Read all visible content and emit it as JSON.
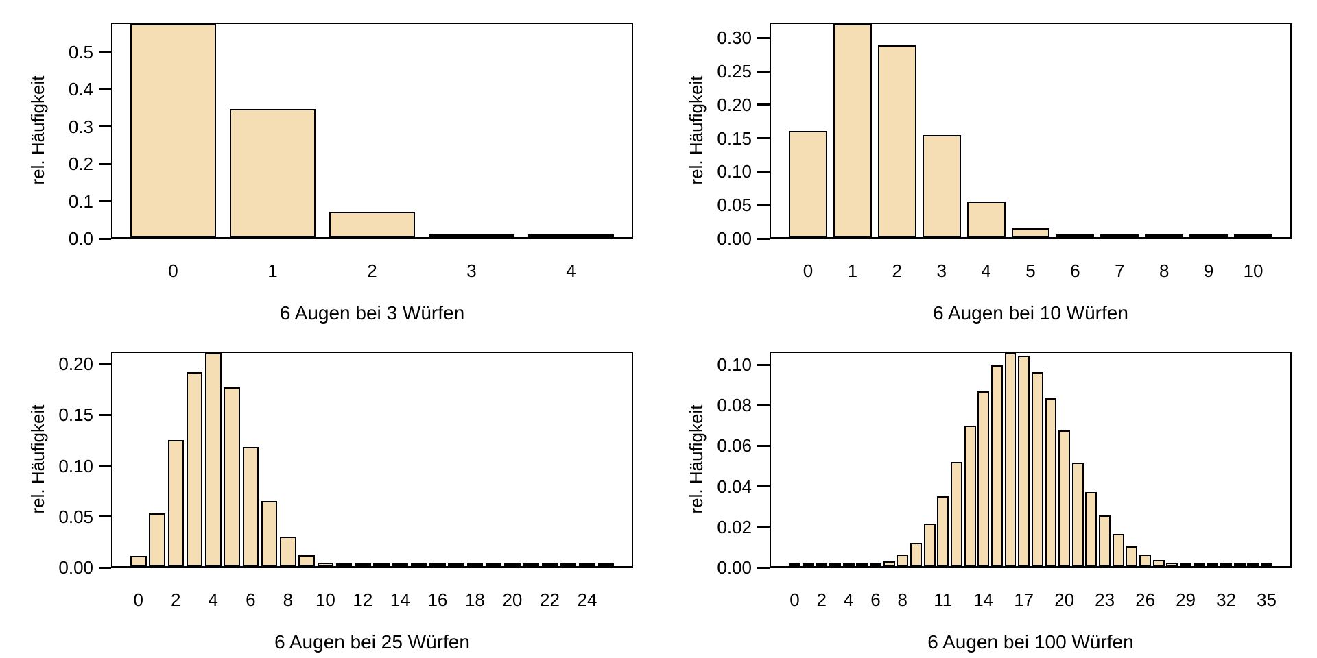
{
  "figure": {
    "background": "#ffffff",
    "text_color": "#000000",
    "bar_fill": "#F5DEB3",
    "bar_border": "#000000",
    "axis_color": "#000000"
  },
  "chart_data": [
    {
      "type": "bar",
      "title": "6 Augen bei 3 Würfen",
      "xlabel": "6 Augen bei 3 Würfen",
      "ylabel": "rel. Häufigkeit",
      "grid": false,
      "legend": null,
      "categories": [
        0,
        1,
        2,
        3,
        4
      ],
      "values": [
        0.578704,
        0.347222,
        0.069444,
        0.00463,
        0
      ],
      "ylim": [
        0,
        0.578704
      ],
      "ytick_values": [
        0.0,
        0.1,
        0.2,
        0.3,
        0.4,
        0.5
      ],
      "ytick_labels": [
        "0.0",
        "0.1",
        "0.2",
        "0.3",
        "0.4",
        "0.5"
      ],
      "xtick_indices": [
        0,
        1,
        2,
        3,
        4
      ],
      "xtick_labels": [
        "0",
        "1",
        "2",
        "3",
        "4"
      ]
    },
    {
      "type": "bar",
      "title": "6 Augen bei 10 Würfen",
      "xlabel": "6 Augen bei 10 Würfen",
      "ylabel": "rel. Häufigkeit",
      "grid": false,
      "legend": null,
      "categories": [
        0,
        1,
        2,
        3,
        4,
        5,
        6,
        7,
        8,
        9,
        10
      ],
      "values": [
        0.161506,
        0.323011,
        0.29071,
        0.155045,
        0.054266,
        0.013024,
        0.002171,
        0.000248,
        1.9e-05,
        1e-06,
        0
      ],
      "ylim": [
        0,
        0.323011
      ],
      "ytick_values": [
        0.0,
        0.05,
        0.1,
        0.15,
        0.2,
        0.25,
        0.3
      ],
      "ytick_labels": [
        "0.00",
        "0.05",
        "0.10",
        "0.15",
        "0.20",
        "0.25",
        "0.30"
      ],
      "xtick_indices": [
        0,
        1,
        2,
        3,
        4,
        5,
        6,
        7,
        8,
        9,
        10
      ],
      "xtick_labels": [
        "0",
        "1",
        "2",
        "3",
        "4",
        "5",
        "6",
        "7",
        "8",
        "9",
        "10"
      ]
    },
    {
      "type": "bar",
      "title": "6 Augen bei 25 Würfen",
      "xlabel": "6 Augen bei 25 Würfen",
      "ylabel": "rel. Häufigkeit",
      "grid": false,
      "legend": null,
      "categories": [
        0,
        1,
        2,
        3,
        4,
        5,
        6,
        7,
        8,
        9,
        10,
        11,
        12,
        13,
        14,
        15,
        16,
        17,
        18,
        19,
        20,
        21,
        22,
        23,
        24,
        25
      ],
      "values": [
        0.010483,
        0.052413,
        0.125791,
        0.19288,
        0.212168,
        0.178221,
        0.118814,
        0.064499,
        0.029025,
        0.010965,
        0.003509,
        0.000957,
        0.000223,
        4.5e-05,
        8e-06,
        1e-06,
        0,
        0,
        0,
        0,
        0,
        0,
        0,
        0,
        0,
        0
      ],
      "ylim": [
        0,
        0.212168
      ],
      "ytick_values": [
        0.0,
        0.05,
        0.1,
        0.15,
        0.2
      ],
      "ytick_labels": [
        "0.00",
        "0.05",
        "0.10",
        "0.15",
        "0.20"
      ],
      "xtick_indices": [
        0,
        2,
        4,
        6,
        8,
        10,
        12,
        14,
        16,
        18,
        20,
        22,
        24
      ],
      "xtick_labels": [
        "0",
        "2",
        "4",
        "6",
        "8",
        "10",
        "12",
        "14",
        "16",
        "18",
        "20",
        "22",
        "24"
      ]
    },
    {
      "type": "bar",
      "title": "6 Augen bei 100 Würfen",
      "xlabel": "6 Augen bei 100 Würfen",
      "ylabel": "rel. Häufigkeit",
      "grid": false,
      "legend": null,
      "categories": [
        0,
        1,
        2,
        3,
        4,
        5,
        6,
        7,
        8,
        9,
        10,
        11,
        12,
        13,
        14,
        15,
        16,
        17,
        18,
        19,
        20,
        21,
        22,
        23,
        24,
        25,
        26,
        27,
        28,
        29,
        30,
        31,
        32,
        33,
        34,
        35
      ],
      "values": [
        0,
        0,
        2e-06,
        1.6e-05,
        7.6e-05,
        0.000291,
        0.000921,
        0.002473,
        0.00575,
        0.011756,
        0.021395,
        0.03501,
        0.051931,
        0.070307,
        0.087382,
        0.100198,
        0.10646,
        0.105208,
        0.097025,
        0.083748,
        0.067836,
        0.051685,
        0.037119,
        0.025176,
        0.016155,
        0.009822,
        0.005667,
        0.003106,
        0.00162,
        0.000804,
        0.000381,
        0.000172,
        7.4e-05,
        3.1e-05,
        1.2e-05,
        5e-06
      ],
      "ylim": [
        0,
        0.10646
      ],
      "ytick_values": [
        0.0,
        0.02,
        0.04,
        0.06,
        0.08,
        0.1
      ],
      "ytick_labels": [
        "0.00",
        "0.02",
        "0.04",
        "0.06",
        "0.08",
        "0.10"
      ],
      "xtick_indices": [
        0,
        2,
        4,
        6,
        8,
        11,
        14,
        17,
        20,
        23,
        26,
        29,
        32,
        35
      ],
      "xtick_labels": [
        "0",
        "2",
        "4",
        "6",
        "8",
        "11",
        "14",
        "17",
        "20",
        "23",
        "26",
        "29",
        "32",
        "35"
      ]
    }
  ]
}
